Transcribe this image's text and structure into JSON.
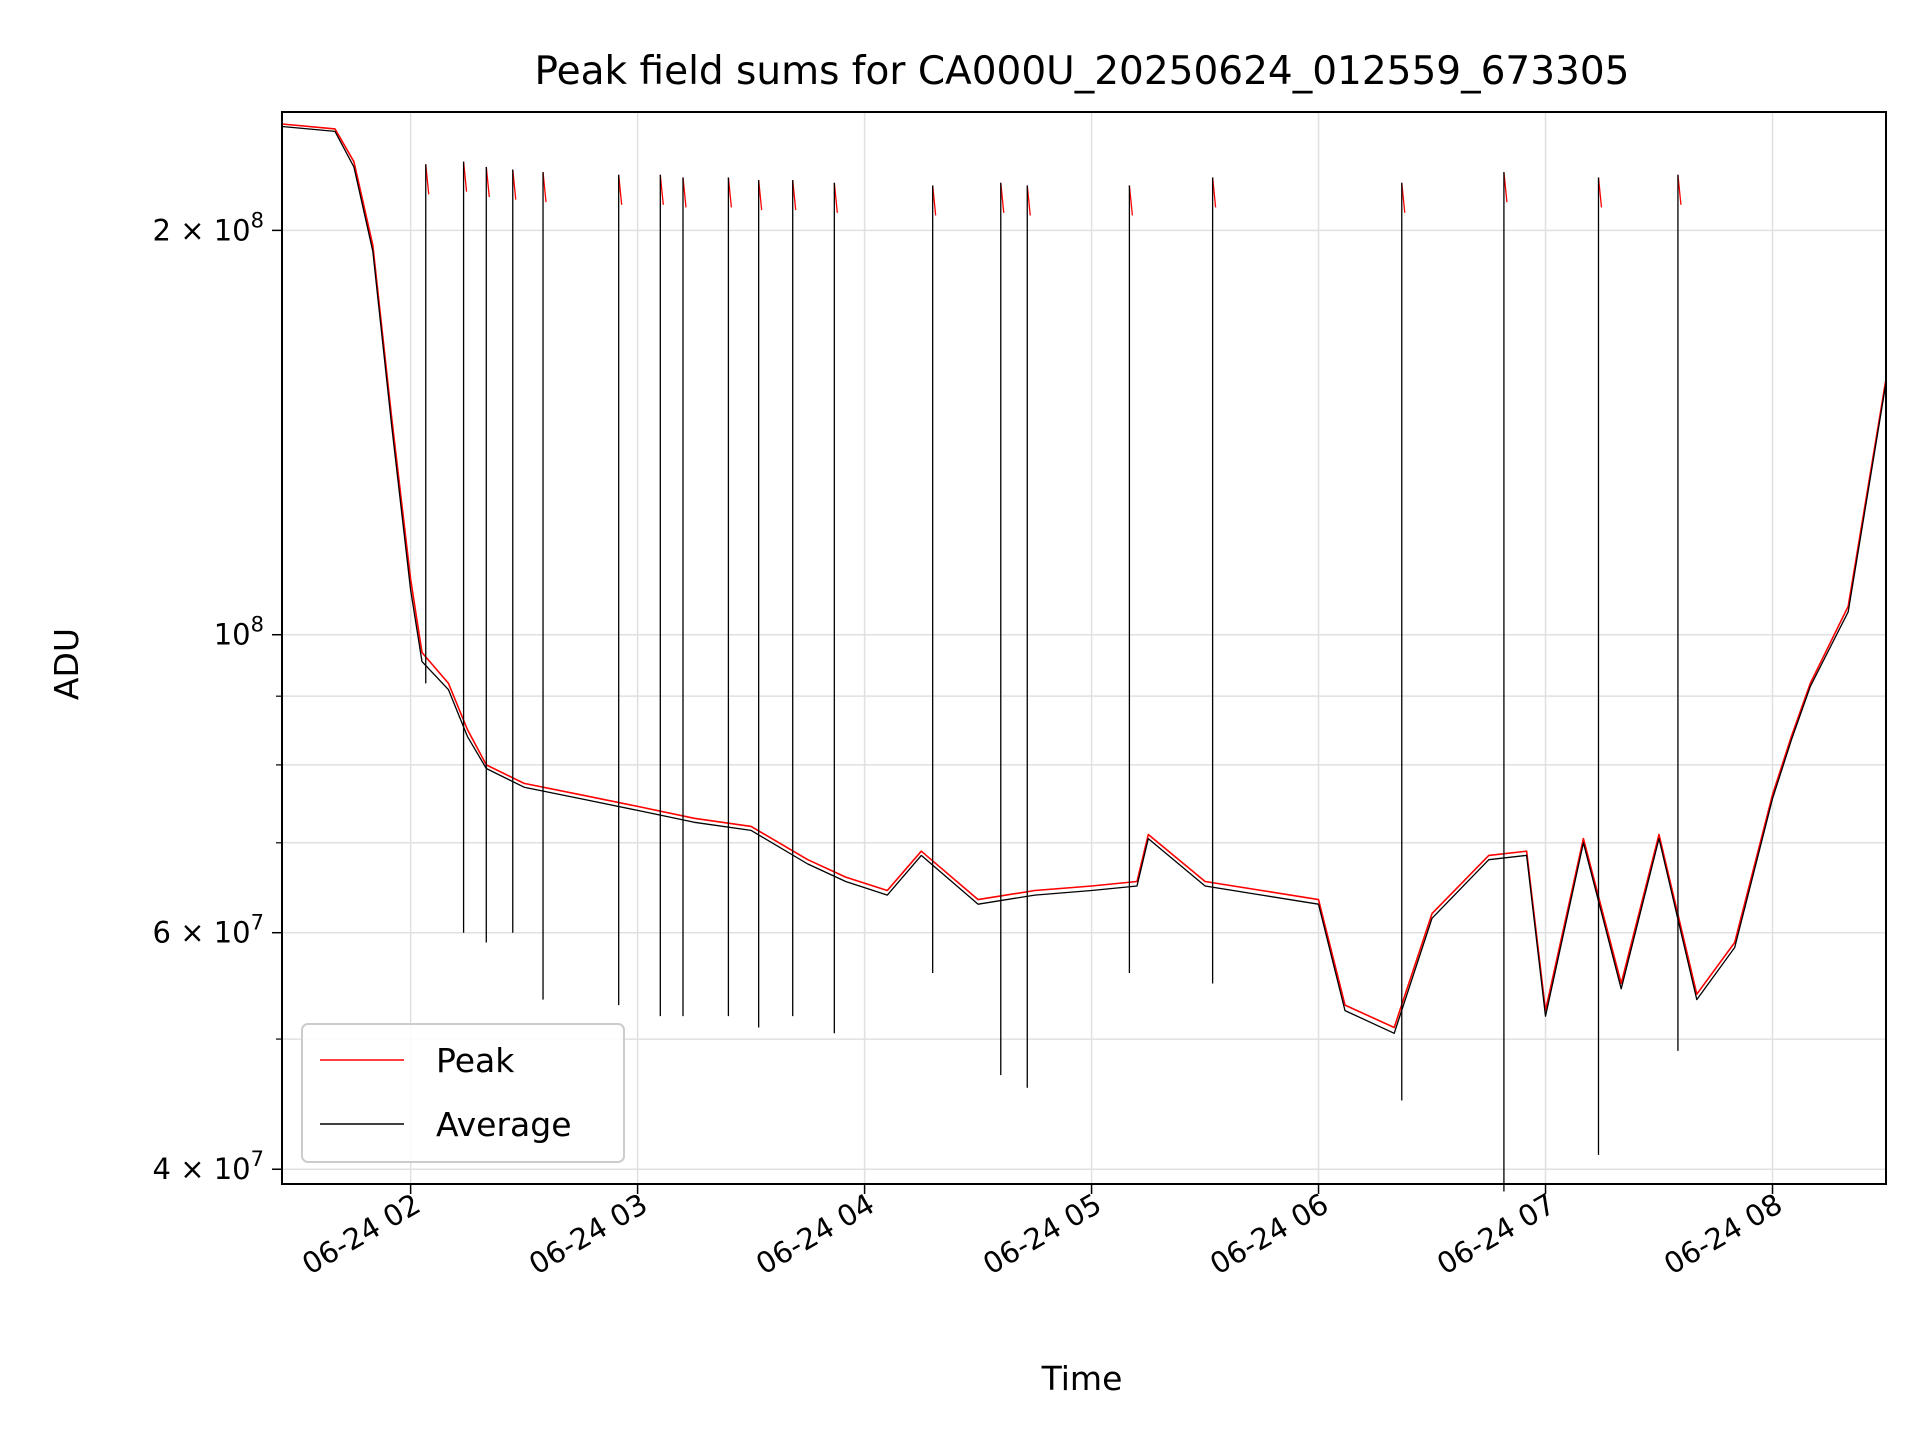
{
  "chart_data": {
    "type": "line",
    "title": "Peak field sums for CA000U_20250624_012559_673305",
    "xlabel": "Time",
    "ylabel": "ADU",
    "yscale": "log",
    "xlim": [
      "2025-06-24 01:26",
      "2025-06-24 08:30"
    ],
    "ylim": [
      39000000,
      245000000
    ],
    "grid": true,
    "legend_position": "lower-left",
    "x_ticks": [
      {
        "value": "2025-06-24 02:00",
        "label": "06-24 02"
      },
      {
        "value": "2025-06-24 03:00",
        "label": "06-24 03"
      },
      {
        "value": "2025-06-24 04:00",
        "label": "06-24 04"
      },
      {
        "value": "2025-06-24 05:00",
        "label": "06-24 05"
      },
      {
        "value": "2025-06-24 06:00",
        "label": "06-24 06"
      },
      {
        "value": "2025-06-24 07:00",
        "label": "06-24 07"
      },
      {
        "value": "2025-06-24 08:00",
        "label": "06-24 08"
      }
    ],
    "y_ticks": [
      {
        "value": 40000000,
        "mantissa": "4",
        "label": "4 × 10^7"
      },
      {
        "value": 60000000,
        "mantissa": "6",
        "label": "6 × 10^7"
      },
      {
        "value": 100000000,
        "mantissa": "",
        "label": "10^8"
      },
      {
        "value": 200000000,
        "mantissa": "2",
        "label": "2 × 10^8"
      }
    ],
    "series": [
      {
        "name": "Peak",
        "color": "#ff0000",
        "x": [
          "2025-06-24 01:26",
          "2025-06-24 01:40",
          "2025-06-24 01:45",
          "2025-06-24 01:50",
          "2025-06-24 01:55",
          "2025-06-24 02:00",
          "2025-06-24 02:03",
          "2025-06-24 02:10",
          "2025-06-24 02:15",
          "2025-06-24 02:20",
          "2025-06-24 02:30",
          "2025-06-24 02:45",
          "2025-06-24 03:00",
          "2025-06-24 03:15",
          "2025-06-24 03:30",
          "2025-06-24 03:45",
          "2025-06-24 03:55",
          "2025-06-24 04:06",
          "2025-06-24 04:15",
          "2025-06-24 04:30",
          "2025-06-24 04:45",
          "2025-06-24 05:00",
          "2025-06-24 05:12",
          "2025-06-24 05:15",
          "2025-06-24 05:30",
          "2025-06-24 05:45",
          "2025-06-24 06:00",
          "2025-06-24 06:07",
          "2025-06-24 06:20",
          "2025-06-24 06:30",
          "2025-06-24 06:45",
          "2025-06-24 06:55",
          "2025-06-24 07:00",
          "2025-06-24 07:10",
          "2025-06-24 07:20",
          "2025-06-24 07:30",
          "2025-06-24 07:40",
          "2025-06-24 07:50",
          "2025-06-24 08:00",
          "2025-06-24 08:05",
          "2025-06-24 08:10",
          "2025-06-24 08:20",
          "2025-06-24 08:30"
        ],
        "values": [
          240000000,
          238000000,
          225000000,
          195000000,
          145000000,
          110000000,
          97000000,
          92000000,
          85000000,
          80000000,
          77500000,
          76000000,
          74500000,
          73000000,
          72000000,
          68000000,
          66000000,
          64500000,
          69000000,
          63500000,
          64500000,
          65000000,
          65500000,
          71000000,
          65500000,
          64500000,
          63500000,
          53000000,
          51000000,
          62000000,
          68500000,
          69000000,
          52500000,
          70500000,
          55000000,
          71000000,
          54000000,
          59000000,
          76000000,
          84000000,
          92000000,
          105000000,
          155000000
        ]
      },
      {
        "name": "Average",
        "color": "#000000",
        "x": [
          "2025-06-24 01:26",
          "2025-06-24 01:40",
          "2025-06-24 01:45",
          "2025-06-24 01:50",
          "2025-06-24 01:55",
          "2025-06-24 02:00",
          "2025-06-24 02:03",
          "2025-06-24 02:10",
          "2025-06-24 02:15",
          "2025-06-24 02:20",
          "2025-06-24 02:30",
          "2025-06-24 02:45",
          "2025-06-24 03:00",
          "2025-06-24 03:15",
          "2025-06-24 03:30",
          "2025-06-24 03:45",
          "2025-06-24 03:55",
          "2025-06-24 04:06",
          "2025-06-24 04:15",
          "2025-06-24 04:30",
          "2025-06-24 04:45",
          "2025-06-24 05:00",
          "2025-06-24 05:12",
          "2025-06-24 05:15",
          "2025-06-24 05:30",
          "2025-06-24 05:45",
          "2025-06-24 06:00",
          "2025-06-24 06:07",
          "2025-06-24 06:20",
          "2025-06-24 06:30",
          "2025-06-24 06:45",
          "2025-06-24 06:55",
          "2025-06-24 07:00",
          "2025-06-24 07:10",
          "2025-06-24 07:20",
          "2025-06-24 07:30",
          "2025-06-24 07:40",
          "2025-06-24 07:50",
          "2025-06-24 08:00",
          "2025-06-24 08:05",
          "2025-06-24 08:10",
          "2025-06-24 08:20",
          "2025-06-24 08:30"
        ],
        "values": [
          239000000,
          237000000,
          223000000,
          193000000,
          143000000,
          108000000,
          95500000,
          91000000,
          84000000,
          79500000,
          77000000,
          75500000,
          74000000,
          72500000,
          71500000,
          67500000,
          65500000,
          64000000,
          68500000,
          63000000,
          64000000,
          64500000,
          65000000,
          70500000,
          65000000,
          64000000,
          63000000,
          52500000,
          50500000,
          61500000,
          68000000,
          68500000,
          52000000,
          70000000,
          54500000,
          70500000,
          53500000,
          58500000,
          75500000,
          83500000,
          91500000,
          104000000,
          154000000
        ]
      }
    ],
    "spikes": [
      {
        "time": "2025-06-24 02:04",
        "top": 224000000,
        "bottom": 92000000
      },
      {
        "time": "2025-06-24 02:14",
        "top": 225000000,
        "bottom": 60000000
      },
      {
        "time": "2025-06-24 02:20",
        "top": 223000000,
        "bottom": 59000000
      },
      {
        "time": "2025-06-24 02:27",
        "top": 222000000,
        "bottom": 60000000
      },
      {
        "time": "2025-06-24 02:35",
        "top": 221000000,
        "bottom": 53500000
      },
      {
        "time": "2025-06-24 02:55",
        "top": 220000000,
        "bottom": 53000000
      },
      {
        "time": "2025-06-24 03:06",
        "top": 220000000,
        "bottom": 52000000
      },
      {
        "time": "2025-06-24 03:12",
        "top": 219000000,
        "bottom": 52000000
      },
      {
        "time": "2025-06-24 03:24",
        "top": 219000000,
        "bottom": 52000000
      },
      {
        "time": "2025-06-24 03:32",
        "top": 218000000,
        "bottom": 51000000
      },
      {
        "time": "2025-06-24 03:41",
        "top": 218000000,
        "bottom": 52000000
      },
      {
        "time": "2025-06-24 03:52",
        "top": 217000000,
        "bottom": 50500000
      },
      {
        "time": "2025-06-24 04:18",
        "top": 216000000,
        "bottom": 56000000
      },
      {
        "time": "2025-06-24 04:36",
        "top": 217000000,
        "bottom": 47000000
      },
      {
        "time": "2025-06-24 04:43",
        "top": 216000000,
        "bottom": 46000000
      },
      {
        "time": "2025-06-24 05:10",
        "top": 216000000,
        "bottom": 56000000
      },
      {
        "time": "2025-06-24 05:32",
        "top": 219000000,
        "bottom": 55000000
      },
      {
        "time": "2025-06-24 06:22",
        "top": 217000000,
        "bottom": 45000000
      },
      {
        "time": "2025-06-24 06:49",
        "top": 221000000,
        "bottom": 38500000
      },
      {
        "time": "2025-06-24 07:14",
        "top": 219000000,
        "bottom": 41000000
      },
      {
        "time": "2025-06-24 07:35",
        "top": 220000000,
        "bottom": 49000000
      }
    ]
  }
}
